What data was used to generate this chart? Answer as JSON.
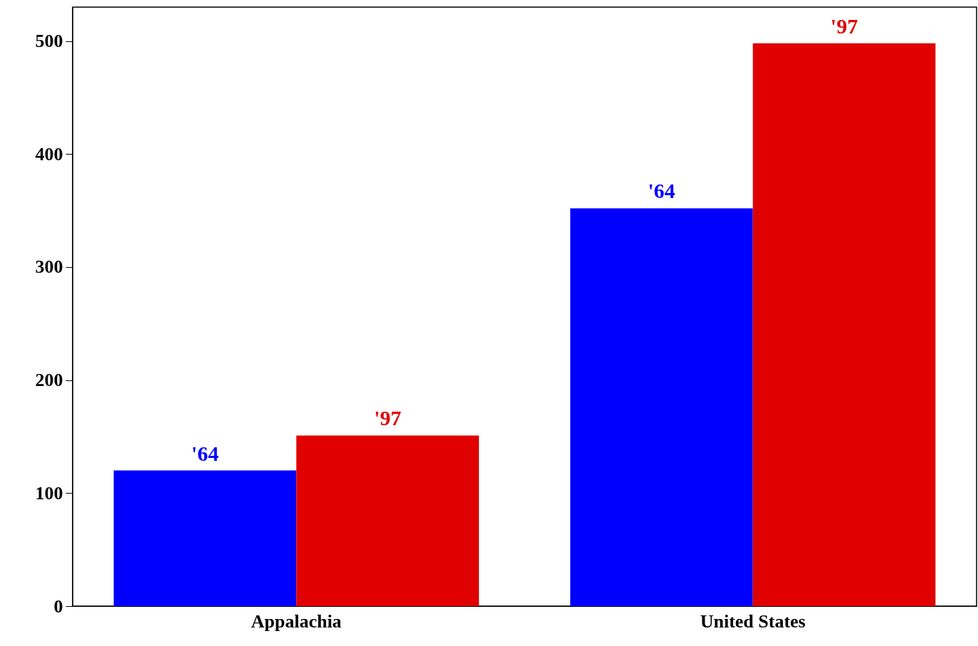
{
  "chart_data": {
    "type": "bar",
    "categories": [
      "Appalachia",
      "United States"
    ],
    "series": [
      {
        "name": "'64",
        "color": "#0000ff",
        "values": [
          120,
          352
        ]
      },
      {
        "name": "'97",
        "color": "#e00000",
        "values": [
          151,
          498
        ]
      }
    ],
    "ylim": [
      0,
      530
    ],
    "yticks": [
      0,
      100,
      200,
      300,
      400,
      500
    ],
    "grid": false
  }
}
